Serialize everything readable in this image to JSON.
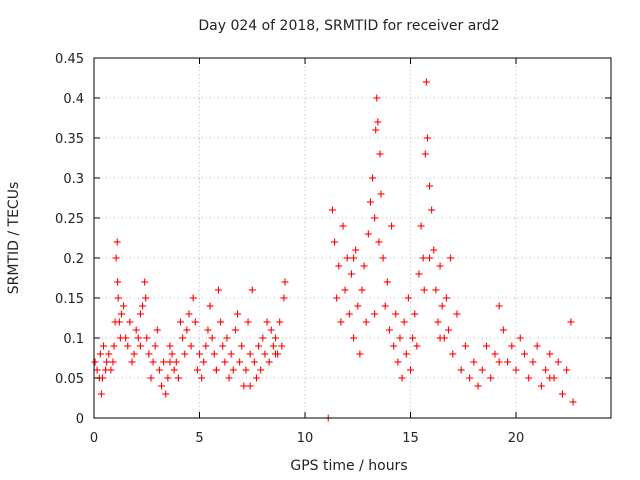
{
  "chart_data": {
    "type": "scatter",
    "title": "Day 024 of 2018, SRMTID for receiver ard2",
    "xlabel": "GPS time / hours",
    "ylabel": "SRMTID / TECUs",
    "xlim": [
      0,
      24.5
    ],
    "ylim": [
      0,
      0.45
    ],
    "xticks": [
      0,
      5,
      10,
      15,
      20
    ],
    "xtick_labels": [
      "0",
      "5",
      "10",
      "15",
      "20"
    ],
    "yticks": [
      0,
      0.05,
      0.1,
      0.15,
      0.2,
      0.25,
      0.3,
      0.35,
      0.4,
      0.45
    ],
    "ytick_labels": [
      "0",
      "0.05",
      "0.1",
      "0.15",
      "0.2",
      "0.25",
      "0.3",
      "0.35",
      "0.4",
      "0.45"
    ],
    "grid": true,
    "marker": "plus",
    "color": "#ff0000",
    "series": [
      {
        "name": "SRMTID",
        "x": [
          0.05,
          0.15,
          0.25,
          0.3,
          0.35,
          0.45,
          0.55,
          0.6,
          0.7,
          0.8,
          0.9,
          0.95,
          1.05,
          1.1,
          1.12,
          1.15,
          1.2,
          1.25,
          1.3,
          1.4,
          1.5,
          1.6,
          1.7,
          1.8,
          1.9,
          2.0,
          2.1,
          2.2,
          2.3,
          2.4,
          2.45,
          2.5,
          2.6,
          2.7,
          2.8,
          2.9,
          3.0,
          3.1,
          3.2,
          3.3,
          3.4,
          3.5,
          3.6,
          3.7,
          3.8,
          3.9,
          4.0,
          4.1,
          4.2,
          4.3,
          4.4,
          4.5,
          4.6,
          4.7,
          4.8,
          4.9,
          5.0,
          5.1,
          5.2,
          5.3,
          5.4,
          5.5,
          5.6,
          5.7,
          5.8,
          5.9,
          6.0,
          6.1,
          6.2,
          6.3,
          6.4,
          6.5,
          6.6,
          6.7,
          6.8,
          6.9,
          7.0,
          7.1,
          7.2,
          7.3,
          7.4,
          7.5,
          7.6,
          7.7,
          7.8,
          7.9,
          8.0,
          8.1,
          8.2,
          8.3,
          8.4,
          8.5,
          8.6,
          8.7,
          8.8,
          8.9,
          9.0,
          9.05,
          11.1,
          11.3,
          11.4,
          11.5,
          11.6,
          11.7,
          11.8,
          11.9,
          12.0,
          12.1,
          12.2,
          12.3,
          12.4,
          12.5,
          12.6,
          12.7,
          12.8,
          12.9,
          13.0,
          13.1,
          13.2,
          13.3,
          13.35,
          13.4,
          13.45,
          13.5,
          13.55,
          13.6,
          13.7,
          13.8,
          13.9,
          14.0,
          14.1,
          14.2,
          14.3,
          14.4,
          14.5,
          14.6,
          14.7,
          14.8,
          14.9,
          15.0,
          15.1,
          15.2,
          15.3,
          15.4,
          15.5,
          15.6,
          15.65,
          15.7,
          15.75,
          15.8,
          15.9,
          16.0,
          16.1,
          16.2,
          16.3,
          16.4,
          16.5,
          16.6,
          16.7,
          16.8,
          16.9,
          17.0,
          17.2,
          17.4,
          17.6,
          17.8,
          18.0,
          18.2,
          18.4,
          18.6,
          18.8,
          19.0,
          19.2,
          19.4,
          19.6,
          19.8,
          20.0,
          20.2,
          20.4,
          20.6,
          20.8,
          21.0,
          21.2,
          21.4,
          21.6,
          21.8,
          22.0,
          22.2,
          22.4,
          22.6,
          22.7,
          0.4,
          1.0,
          2.2,
          3.6,
          5.8,
          7.4,
          8.6,
          12.3,
          13.3,
          15.9,
          16.4,
          19.2,
          21.6
        ],
        "y": [
          0.07,
          0.06,
          0.05,
          0.08,
          0.03,
          0.09,
          0.06,
          0.07,
          0.08,
          0.06,
          0.07,
          0.09,
          0.2,
          0.22,
          0.17,
          0.15,
          0.12,
          0.1,
          0.13,
          0.14,
          0.1,
          0.09,
          0.12,
          0.07,
          0.08,
          0.11,
          0.1,
          0.09,
          0.14,
          0.17,
          0.15,
          0.1,
          0.08,
          0.05,
          0.07,
          0.09,
          0.11,
          0.06,
          0.04,
          0.07,
          0.03,
          0.05,
          0.09,
          0.08,
          0.06,
          0.07,
          0.05,
          0.12,
          0.1,
          0.08,
          0.11,
          0.13,
          0.09,
          0.15,
          0.12,
          0.06,
          0.08,
          0.05,
          0.07,
          0.09,
          0.11,
          0.14,
          0.1,
          0.08,
          0.06,
          0.16,
          0.12,
          0.09,
          0.07,
          0.1,
          0.05,
          0.08,
          0.06,
          0.11,
          0.13,
          0.07,
          0.09,
          0.04,
          0.06,
          0.12,
          0.08,
          0.16,
          0.07,
          0.05,
          0.09,
          0.06,
          0.1,
          0.08,
          0.12,
          0.07,
          0.11,
          0.09,
          0.1,
          0.08,
          0.12,
          0.09,
          0.15,
          0.17,
          0.0,
          0.26,
          0.22,
          0.15,
          0.19,
          0.12,
          0.24,
          0.16,
          0.2,
          0.13,
          0.18,
          0.1,
          0.21,
          0.14,
          0.08,
          0.16,
          0.19,
          0.12,
          0.23,
          0.27,
          0.3,
          0.25,
          0.36,
          0.4,
          0.37,
          0.22,
          0.33,
          0.28,
          0.2,
          0.14,
          0.17,
          0.11,
          0.24,
          0.09,
          0.13,
          0.07,
          0.1,
          0.05,
          0.12,
          0.08,
          0.15,
          0.06,
          0.1,
          0.13,
          0.09,
          0.18,
          0.24,
          0.2,
          0.16,
          0.33,
          0.42,
          0.35,
          0.29,
          0.26,
          0.21,
          0.16,
          0.12,
          0.19,
          0.14,
          0.1,
          0.15,
          0.11,
          0.2,
          0.08,
          0.13,
          0.06,
          0.09,
          0.05,
          0.07,
          0.04,
          0.06,
          0.09,
          0.05,
          0.08,
          0.14,
          0.11,
          0.07,
          0.09,
          0.06,
          0.1,
          0.08,
          0.05,
          0.07,
          0.09,
          0.04,
          0.06,
          0.08,
          0.05,
          0.07,
          0.03,
          0.06,
          0.12,
          0.02,
          0.05,
          0.12,
          0.13,
          0.07,
          0.06,
          0.04,
          0.08,
          0.2,
          0.13,
          0.2,
          0.1,
          0.07,
          0.05
        ]
      }
    ]
  }
}
